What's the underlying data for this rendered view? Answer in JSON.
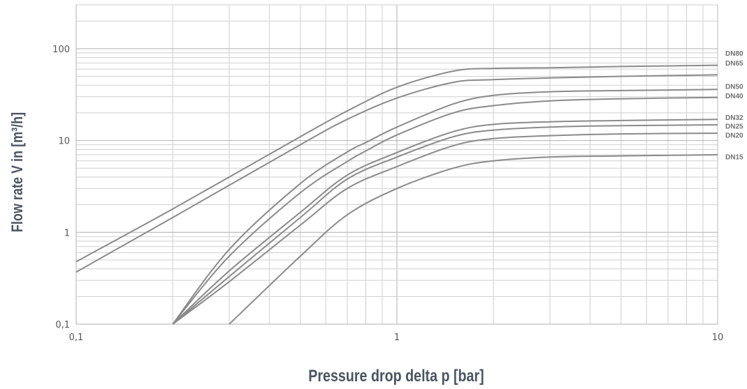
{
  "chart_data": {
    "type": "line",
    "title": "",
    "xlabel": "Pressure drop delta p [bar]",
    "ylabel": "Flow rate V in [m³/h]",
    "xscale": "log",
    "yscale": "log",
    "xlim": [
      0.1,
      10
    ],
    "ylim": [
      0.1,
      300
    ],
    "grid": true,
    "x_ticks": [
      {
        "value": 0.1,
        "label": "0,1"
      },
      {
        "value": 1,
        "label": "1"
      },
      {
        "value": 10,
        "label": "10"
      }
    ],
    "y_ticks": [
      {
        "value": 0.1,
        "label": "0,1"
      },
      {
        "value": 1,
        "label": "1"
      },
      {
        "value": 10,
        "label": "10"
      },
      {
        "value": 100,
        "label": "100"
      }
    ],
    "series": [
      {
        "name": "DN80",
        "label_value": 90,
        "x": [
          0.1,
          0.2,
          0.5,
          0.7,
          1,
          1.5,
          2,
          3,
          5,
          10
        ],
        "y": [
          0.48,
          1.8,
          11,
          21,
          38,
          57,
          61,
          62,
          64,
          66
        ]
      },
      {
        "name": "DN65",
        "label_value": 70,
        "x": [
          0.1,
          0.2,
          0.5,
          0.7,
          1,
          1.5,
          2,
          3,
          5,
          10
        ],
        "y": [
          0.37,
          1.45,
          9,
          17,
          29,
          43,
          46,
          48,
          50,
          52
        ]
      },
      {
        "name": "DN50",
        "label_value": 39,
        "x": [
          0.2,
          0.3,
          0.5,
          0.7,
          0.8,
          1,
          1.5,
          2,
          3,
          5,
          10
        ],
        "y": [
          0.1,
          0.65,
          3.4,
          7.5,
          9.5,
          14,
          25,
          31,
          34,
          35,
          36
        ]
      },
      {
        "name": "DN40",
        "label_value": 31,
        "x": [
          0.2,
          0.3,
          0.5,
          0.7,
          0.8,
          1,
          1.5,
          2,
          3,
          5,
          10
        ],
        "y": [
          0.1,
          0.55,
          2.7,
          5.9,
          7.7,
          11.5,
          20,
          24,
          27,
          28.5,
          29.5
        ]
      },
      {
        "name": "DN32",
        "label_value": 18,
        "x": [
          0.2,
          0.3,
          0.5,
          0.7,
          1,
          1.5,
          2,
          3,
          5,
          10
        ],
        "y": [
          0.1,
          0.38,
          1.65,
          4.2,
          7.4,
          12.5,
          15,
          16,
          16.5,
          17
        ]
      },
      {
        "name": "DN25",
        "label_value": 14.5,
        "x": [
          0.2,
          0.3,
          0.5,
          0.7,
          1,
          1.5,
          2,
          3,
          5,
          10
        ],
        "y": [
          0.1,
          0.33,
          1.45,
          3.8,
          6.6,
          11,
          13,
          14,
          14.5,
          14.8
        ]
      },
      {
        "name": "DN20",
        "label_value": 11.5,
        "x": [
          0.2,
          0.3,
          0.5,
          0.7,
          1,
          1.5,
          2,
          3,
          5,
          10
        ],
        "y": [
          0.1,
          0.29,
          1.2,
          3.0,
          5.2,
          8.8,
          10.5,
          11.3,
          11.8,
          12
        ]
      },
      {
        "name": "DN15",
        "label_value": 6.7,
        "x": [
          0.3,
          0.5,
          0.7,
          1,
          1.5,
          2,
          3,
          5,
          10
        ],
        "y": [
          0.1,
          0.55,
          1.55,
          3.0,
          5.0,
          6.0,
          6.6,
          6.8,
          7
        ]
      }
    ]
  }
}
